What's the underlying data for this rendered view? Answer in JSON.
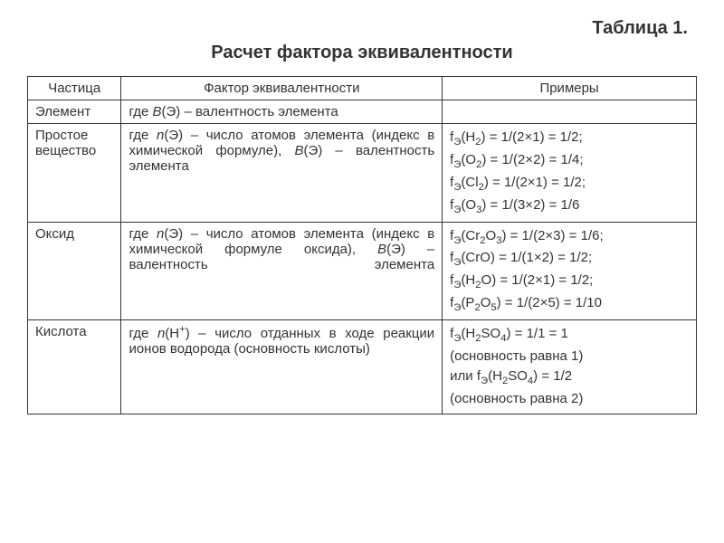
{
  "table_label": "Таблица 1.",
  "title": "Расчет фактора эквивалентности",
  "headers": {
    "particle": "Частица",
    "factor": "Фактор эквивалентности",
    "examples": "Примеры"
  },
  "rows": {
    "element": {
      "particle": "Элемент",
      "factor_html": "где <span class='italic'>В</span>(Э) – валентность элемента",
      "examples_html": ""
    },
    "simple": {
      "particle": "Простое вещество",
      "factor_html": "где <span class='italic'>n</span>(Э) – число атомов элемента (индекс в химической формуле), <span class='italic'>В</span>(Э) – валентность элемента",
      "examples_lines": [
        "f<sub>Э</sub>(H<sub>2</sub>) = 1/(2×1) = 1/2;",
        "f<sub>Э</sub>(O<sub>2</sub>) = 1/(2×2) = 1/4;",
        "f<sub>Э</sub>(Cl<sub>2</sub>) = 1/(2×1) = 1/2;",
        "f<sub>Э</sub>(O<sub>3</sub>) = 1/(3×2) = 1/6"
      ]
    },
    "oxide": {
      "particle": "Оксид",
      "factor_html": "где <span class='italic'>n</span>(Э) – число атомов элемента (индекс в химической формуле оксида), <span class='italic'>В</span>(Э) – валентность элемента",
      "examples_lines": [
        "f<sub>Э</sub>(Cr<sub>2</sub>O<sub>3</sub>) = 1/(2×3) = 1/6;",
        "f<sub>Э</sub>(CrO) = 1/(1×2) = 1/2;",
        "f<sub>Э</sub>(H<sub>2</sub>O) = 1/(2×1) = 1/2;",
        "f<sub>Э</sub>(P<sub>2</sub>O<sub>5</sub>) = 1/(2×5) = 1/10"
      ]
    },
    "acid": {
      "particle": "Кислота",
      "factor_html": "где <span class='italic'>n</span>(H<sup>+</sup>) – число отданных в ходе реакции ионов водорода (основность кислоты)",
      "examples_lines": [
        "f<sub>Э</sub>(H<sub>2</sub>SO<sub>4</sub>) = 1/1 = 1",
        "(основность равна 1)",
        "или f<sub>Э</sub>(H<sub>2</sub>SO<sub>4</sub>) = 1/2",
        "(основность равна 2)"
      ]
    }
  },
  "colors": {
    "text": "#333333",
    "border": "#333333",
    "background": "#ffffff"
  },
  "fonts": {
    "title_size_pt": 20,
    "body_size_pt": 15,
    "family": "Arial"
  }
}
